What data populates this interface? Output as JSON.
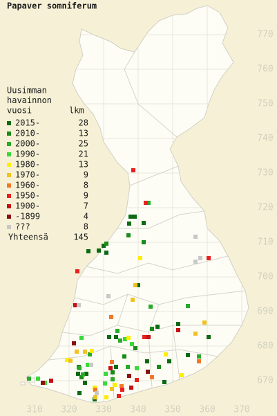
{
  "title": "Papaver somniferum",
  "x_ticks": [
    310,
    320,
    330,
    340,
    350,
    360,
    370
  ],
  "y_ticks": [
    670,
    680,
    690,
    700,
    710,
    720,
    730,
    740,
    750,
    760,
    770
  ],
  "legend": {
    "heading": [
      "Uusimman",
      "havainnon",
      "vuosi"
    ],
    "count_heading": "lkm",
    "rows": [
      {
        "label": "2015-",
        "count": 28,
        "color": "#0b6a12",
        "points": [
          [
            337.8,
            717.4
          ],
          [
            339,
            717.4
          ],
          [
            341.6,
            715.6
          ],
          [
            337.4,
            715.4
          ],
          [
            328.6,
            707.6
          ],
          [
            330,
            709
          ],
          [
            325.6,
            707.4
          ],
          [
            330.8,
            707
          ],
          [
            323,
            666.4
          ],
          [
            327.4,
            664.6
          ],
          [
            324.6,
            669.4
          ],
          [
            322.6,
            672
          ],
          [
            325,
            672
          ],
          [
            331.6,
            682.6
          ],
          [
            333.6,
            682.6
          ],
          [
            342.6,
            675.6
          ],
          [
            333.6,
            674
          ],
          [
            347.6,
            669.6
          ],
          [
            349,
            675.6
          ],
          [
            354.4,
            677.4
          ],
          [
            345.6,
            685.6
          ],
          [
            360.4,
            682.6
          ],
          [
            340,
            697.6
          ],
          [
            351.6,
            686.4
          ]
        ]
      },
      {
        "label": "2010-",
        "count": 13,
        "color": "#1a8a1a",
        "points": [
          [
            337.2,
            712
          ],
          [
            341.6,
            710
          ],
          [
            330.8,
            709.6
          ],
          [
            322.8,
            674
          ],
          [
            323.6,
            671
          ],
          [
            339.2,
            679.4
          ],
          [
            346,
            674
          ],
          [
            332.6,
            672.4
          ],
          [
            336,
            677
          ],
          [
            344,
            685
          ]
        ]
      },
      {
        "label": "2000-",
        "count": 25,
        "color": "#2aaa2a",
        "points": [
          [
            343,
            721.4
          ],
          [
            323,
            673.6
          ],
          [
            324,
            671.8
          ],
          [
            334,
            684.4
          ],
          [
            334.8,
            681.6
          ],
          [
            343.6,
            691.4
          ],
          [
            354.4,
            691.6
          ],
          [
            357.6,
            677
          ],
          [
            308.4,
            670.6
          ],
          [
            332.6,
            670.4
          ],
          [
            337,
            674
          ],
          [
            326,
            677.6
          ]
        ]
      },
      {
        "label": "1990-",
        "count": 21,
        "color": "#3ad83a",
        "points": [
          [
            336.2,
            682
          ],
          [
            338.2,
            680.6
          ],
          [
            330.6,
            672
          ],
          [
            330.4,
            669.2
          ],
          [
            323.6,
            682.4
          ],
          [
            311,
            670.6
          ],
          [
            313,
            669.4
          ],
          [
            325.4,
            674.6
          ],
          [
            339.6,
            673.6
          ]
        ]
      },
      {
        "label": "1980-",
        "count": 13,
        "color": "#ffee00",
        "points": [
          [
            340.6,
            705.4
          ],
          [
            337.2,
            682.4
          ],
          [
            319.4,
            676
          ],
          [
            330.8,
            665.2
          ],
          [
            333.2,
            668.8
          ],
          [
            348,
            677.6
          ],
          [
            352.6,
            671.6
          ],
          [
            327.4,
            668
          ],
          [
            326.6,
            678.6
          ]
        ]
      },
      {
        "label": "1970-",
        "count": 9,
        "color": "#f2c21e",
        "points": [
          [
            338.4,
            693.4
          ],
          [
            339.2,
            697.6
          ],
          [
            320.4,
            675.8
          ],
          [
            322.2,
            678.4
          ],
          [
            324.6,
            678.4
          ],
          [
            327.6,
            665.2
          ],
          [
            332.4,
            667.6
          ],
          [
            359.2,
            686.8
          ],
          [
            356.6,
            683.6
          ]
        ]
      },
      {
        "label": "1960-",
        "count": 8,
        "color": "#f07828",
        "points": [
          [
            332.2,
            688.4
          ],
          [
            327.6,
            667.4
          ],
          [
            335.2,
            668.4
          ],
          [
            357.6,
            675.6
          ],
          [
            344,
            671
          ],
          [
            332.4,
            675.4
          ]
        ]
      },
      {
        "label": "1950-",
        "count": 9,
        "color": "#e82020",
        "points": [
          [
            338.6,
            730.8
          ],
          [
            342.2,
            721.4
          ],
          [
            341.8,
            682.6
          ],
          [
            360.4,
            705.4
          ],
          [
            335.4,
            667.4
          ],
          [
            339.6,
            670.2
          ],
          [
            334.4,
            665.6
          ],
          [
            322.4,
            701.6
          ]
        ]
      },
      {
        "label": "1900-",
        "count": 7,
        "color": "#c41010",
        "points": [
          [
            321.8,
            691.8
          ],
          [
            343,
            682.6
          ],
          [
            338,
            668
          ],
          [
            332,
            673.6
          ],
          [
            351.6,
            684.6
          ],
          [
            314.8,
            670
          ]
        ]
      },
      {
        "label": "-1899",
        "count": 4,
        "color": "#8a1010",
        "points": [
          [
            321.4,
            680.8
          ],
          [
            342.8,
            672.6
          ],
          [
            312.4,
            669.4
          ],
          [
            337.4,
            671.4
          ]
        ]
      },
      {
        "label": "???",
        "count": 8,
        "color": "#c8c8c8",
        "points": [
          [
            322.8,
            691.8
          ],
          [
            331.4,
            694.4
          ],
          [
            356.6,
            711.6
          ],
          [
            358,
            705.4
          ],
          [
            356.6,
            704.4
          ],
          [
            326.4,
            674.6
          ],
          [
            328,
            666.4
          ]
        ]
      }
    ],
    "total_label": "Yhteensä",
    "total": 145
  }
}
